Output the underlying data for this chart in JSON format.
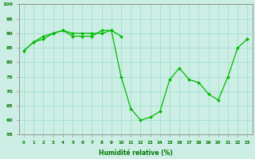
{
  "x": [
    0,
    1,
    2,
    3,
    4,
    5,
    6,
    7,
    8,
    9,
    10,
    11,
    12,
    13,
    14,
    15,
    16,
    17,
    18,
    19,
    20,
    21,
    22,
    23
  ],
  "line1": [
    84,
    87,
    89,
    90,
    91,
    90,
    90,
    90,
    90,
    91,
    89,
    null,
    null,
    null,
    null,
    null,
    null,
    null,
    null,
    null,
    null,
    null,
    null,
    88
  ],
  "line2": [
    84,
    87,
    88,
    90,
    91,
    89,
    89,
    89,
    91,
    91,
    75,
    64,
    60,
    61,
    63,
    74,
    78,
    74,
    73,
    69,
    67,
    75,
    85,
    88
  ],
  "bg_color": "#cceee4",
  "grid_color": "#99ddcc",
  "line_color": "#00bb00",
  "xlabel": "Humidité relative (%)",
  "ylim": [
    55,
    100
  ],
  "yticks": [
    55,
    60,
    65,
    70,
    75,
    80,
    85,
    90,
    95,
    100
  ],
  "xlim": [
    -0.5,
    23.5
  ],
  "xticks": [
    0,
    1,
    2,
    3,
    4,
    5,
    6,
    7,
    8,
    9,
    10,
    11,
    12,
    13,
    14,
    15,
    16,
    17,
    18,
    19,
    20,
    21,
    22,
    23
  ]
}
